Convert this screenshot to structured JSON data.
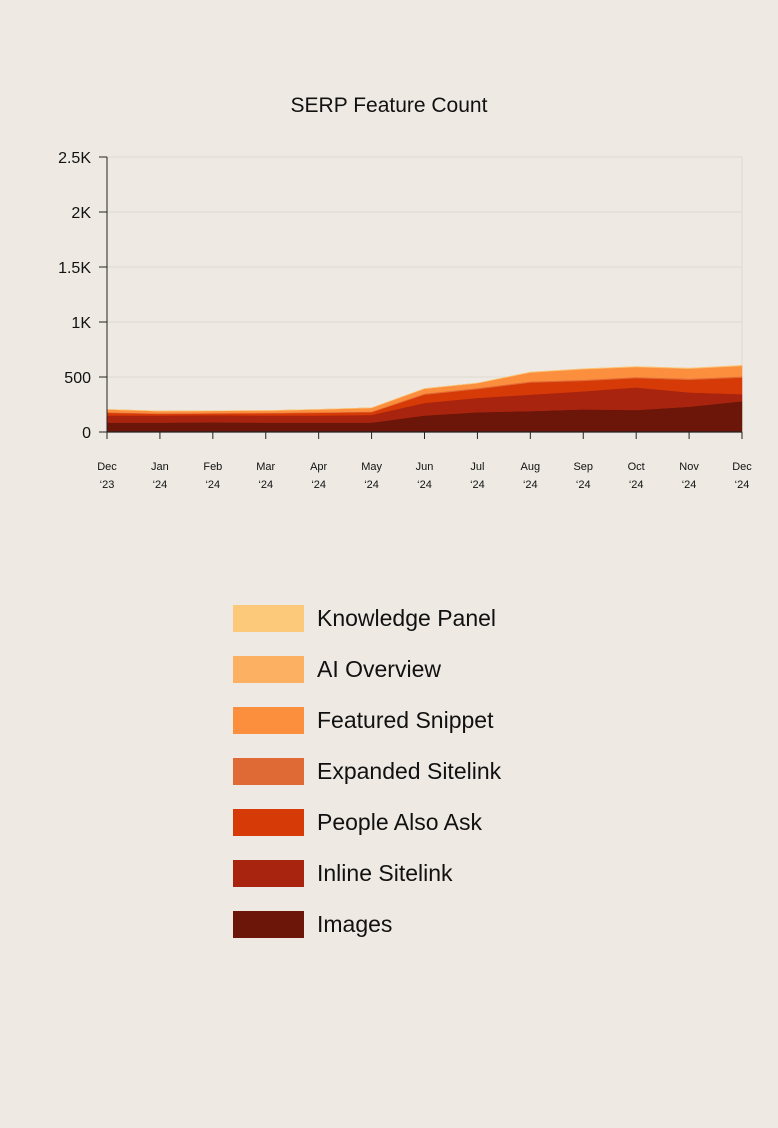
{
  "chart_data": {
    "type": "area",
    "stacked": true,
    "title": "SERP Feature Count",
    "xlabel": "",
    "ylabel": "",
    "ylim": [
      0,
      2500
    ],
    "yticks": [
      0,
      500,
      1000,
      1500,
      2000,
      2500
    ],
    "ytick_labels": [
      "0",
      "500",
      "1K",
      "1.5K",
      "2K",
      "2.5K"
    ],
    "grid": true,
    "legend_position": "bottom",
    "categories": [
      {
        "month": "Dec",
        "year": "‘23"
      },
      {
        "month": "Jan",
        "year": "‘24"
      },
      {
        "month": "Feb",
        "year": "‘24"
      },
      {
        "month": "Mar",
        "year": "‘24"
      },
      {
        "month": "Apr",
        "year": "‘24"
      },
      {
        "month": "May",
        "year": "‘24"
      },
      {
        "month": "Jun",
        "year": "‘24"
      },
      {
        "month": "Jul",
        "year": "‘24"
      },
      {
        "month": "Aug",
        "year": "‘24"
      },
      {
        "month": "Sep",
        "year": "‘24"
      },
      {
        "month": "Oct",
        "year": "‘24"
      },
      {
        "month": "Nov",
        "year": "‘24"
      },
      {
        "month": "Dec",
        "year": "‘24"
      }
    ],
    "series": [
      {
        "name": "Images",
        "color": "#6b1608",
        "values": [
          85,
          85,
          88,
          85,
          85,
          85,
          150,
          180,
          190,
          205,
          200,
          230,
          280
        ]
      },
      {
        "name": "Inline Sitelink",
        "color": "#a8240f",
        "values": [
          65,
          65,
          65,
          65,
          65,
          70,
          115,
          130,
          150,
          165,
          205,
          130,
          65
        ]
      },
      {
        "name": "People Also Ask",
        "color": "#d63a06",
        "values": [
          25,
          15,
          15,
          20,
          25,
          25,
          75,
          80,
          110,
          95,
          85,
          115,
          150
        ]
      },
      {
        "name": "Expanded Sitelink",
        "color": "#e06a36",
        "values": [
          5,
          5,
          5,
          5,
          5,
          5,
          10,
          10,
          10,
          10,
          10,
          10,
          10
        ]
      },
      {
        "name": "Featured Snippet",
        "color": "#fb8f3e",
        "values": [
          25,
          20,
          20,
          20,
          25,
          35,
          45,
          45,
          80,
          95,
          90,
          90,
          95
        ]
      },
      {
        "name": "AI Overview",
        "color": "#fbb062",
        "values": [
          0,
          0,
          0,
          0,
          0,
          0,
          0,
          0,
          5,
          5,
          5,
          5,
          5
        ]
      },
      {
        "name": "Knowledge Panel",
        "color": "#fcc97a",
        "values": [
          0,
          0,
          0,
          0,
          0,
          0,
          0,
          0,
          0,
          0,
          0,
          0,
          0
        ]
      }
    ]
  },
  "legend": {
    "items": [
      {
        "label": "Knowledge Panel",
        "color": "#fcc97a"
      },
      {
        "label": "AI Overview",
        "color": "#fbb062"
      },
      {
        "label": "Featured Snippet",
        "color": "#fb8f3e"
      },
      {
        "label": "Expanded Sitelink",
        "color": "#e06a36"
      },
      {
        "label": "People Also Ask",
        "color": "#d63a06"
      },
      {
        "label": "Inline Sitelink",
        "color": "#a8240f"
      },
      {
        "label": "Images",
        "color": "#6b1608"
      }
    ]
  }
}
